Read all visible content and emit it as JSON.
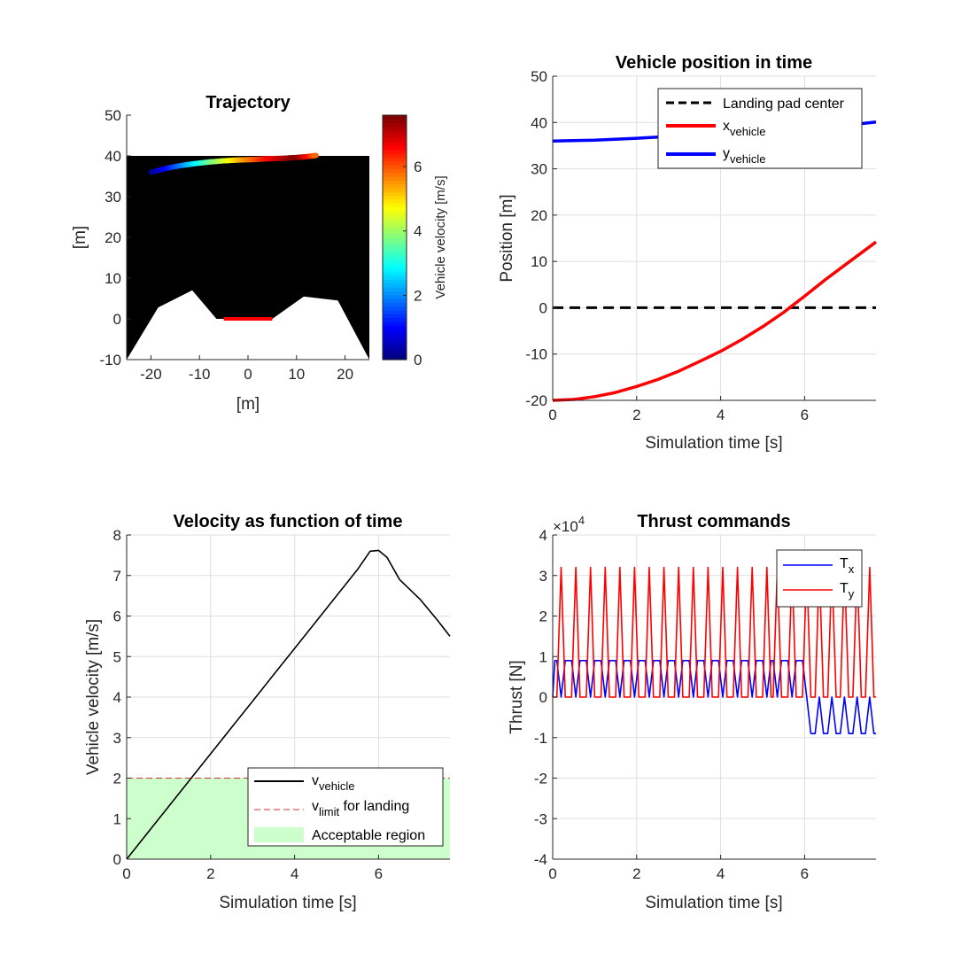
{
  "chart_data": [
    {
      "id": "trajectory",
      "type": "scatter",
      "title": "Trajectory",
      "xlabel": "[m]",
      "ylabel": "[m]",
      "xlim": [
        -25,
        25
      ],
      "ylim": [
        -10,
        50
      ],
      "xticks": [
        -20,
        -10,
        0,
        10,
        20
      ],
      "yticks": [
        -10,
        0,
        10,
        20,
        30,
        40,
        50
      ],
      "grid": false,
      "background_region": {
        "y_top": 40,
        "color": "#000000"
      },
      "terrain": {
        "color": "#ffffff",
        "points": [
          [
            -25,
            -10
          ],
          [
            -18.5,
            2.8
          ],
          [
            -11.5,
            7
          ],
          [
            -6.5,
            0
          ],
          [
            5,
            0
          ],
          [
            11.5,
            5.5
          ],
          [
            18.5,
            4.5
          ],
          [
            25,
            -10
          ]
        ]
      },
      "landing_pad": {
        "x": [
          -5,
          5
        ],
        "y": 0,
        "color": "#ff0000"
      },
      "path": {
        "x": [
          -20,
          -17,
          -14,
          -11,
          -8,
          -5,
          -2,
          1,
          4,
          7,
          10,
          12,
          14
        ],
        "y": [
          36.0,
          36.9,
          37.6,
          38.1,
          38.5,
          38.8,
          39.0,
          39.1,
          39.3,
          39.4,
          39.6,
          39.8,
          40.1
        ],
        "speed": [
          0,
          0.9,
          1.8,
          2.7,
          3.6,
          4.4,
          5.2,
          5.9,
          6.6,
          7.2,
          7.6,
          6.8,
          5.8
        ]
      },
      "colorbar": {
        "label": "Vehicle velocity [m/s]",
        "clim": [
          0,
          7.6
        ],
        "ticks": [
          0,
          2,
          4,
          6
        ],
        "colormap": "jet"
      }
    },
    {
      "id": "position",
      "type": "line",
      "title": "Vehicle position in time",
      "xlabel": "Simulation time [s]",
      "ylabel": "Position [m]",
      "xlim": [
        0,
        7.7
      ],
      "ylim": [
        -20,
        50
      ],
      "xticks": [
        0,
        2,
        4,
        6
      ],
      "yticks": [
        -20,
        -10,
        0,
        10,
        20,
        30,
        40,
        50
      ],
      "grid": true,
      "legend": "top-right",
      "series": [
        {
          "name": "Landing pad center",
          "color": "#000000",
          "dash": "dashed",
          "x": [
            0,
            7.7
          ],
          "y": [
            0,
            0
          ]
        },
        {
          "name": "x",
          "subscript": "vehicle",
          "color": "#ff0000",
          "x": [
            0,
            0.5,
            1,
            1.5,
            2,
            2.5,
            3,
            3.5,
            4,
            4.5,
            5,
            5.5,
            6,
            6.5,
            7,
            7.7
          ],
          "y": [
            -20,
            -19.8,
            -19.2,
            -18.3,
            -17,
            -15.5,
            -13.7,
            -11.6,
            -9.4,
            -6.9,
            -4.1,
            -1.0,
            2.5,
            6.1,
            9.5,
            14.2
          ]
        },
        {
          "name": "y",
          "subscript": "vehicle",
          "color": "#0000ff",
          "x": [
            0,
            1,
            2,
            3,
            4,
            5,
            6,
            7,
            7.7
          ],
          "y": [
            36,
            36.2,
            36.6,
            37.1,
            37.6,
            38.1,
            38.7,
            39.4,
            40.1
          ]
        }
      ]
    },
    {
      "id": "velocity",
      "type": "line",
      "title": "Velocity as function of time",
      "xlabel": "Simulation time [s]",
      "ylabel": "Vehicle velocity [m/s]",
      "xlim": [
        0,
        7.7
      ],
      "ylim": [
        0,
        8
      ],
      "xticks": [
        0,
        2,
        4,
        6
      ],
      "yticks": [
        0,
        1,
        2,
        3,
        4,
        5,
        6,
        7,
        8
      ],
      "grid": true,
      "legend": "bottom-right",
      "series": [
        {
          "name": "v",
          "subscript": "vehicle",
          "color": "#000000",
          "x": [
            0,
            0.5,
            1,
            1.5,
            2,
            2.5,
            3,
            3.5,
            4,
            4.5,
            5,
            5.5,
            5.8,
            6.0,
            6.2,
            6.5,
            7.0,
            7.4,
            7.7
          ],
          "y": [
            0,
            0.65,
            1.3,
            1.95,
            2.6,
            3.25,
            3.9,
            4.55,
            5.2,
            5.85,
            6.5,
            7.15,
            7.6,
            7.62,
            7.45,
            6.9,
            6.4,
            5.9,
            5.5
          ]
        },
        {
          "name": "v",
          "subscript": "limit",
          "suffix": " for landing",
          "color": "#cc3333",
          "dash": "dashed",
          "x": [
            0,
            7.7
          ],
          "y": [
            2,
            2
          ]
        }
      ],
      "region": {
        "name": "Acceptable region",
        "y": [
          0,
          2
        ],
        "color": "#ccffcc"
      }
    },
    {
      "id": "thrust",
      "type": "line",
      "title": "Thrust commands",
      "xlabel": "Simulation time [s]",
      "ylabel": "Thrust [N]",
      "xlim": [
        0,
        7.7
      ],
      "ylim": [
        -4,
        4
      ],
      "xticks": [
        0,
        2,
        4,
        6
      ],
      "yticks": [
        -4,
        -3,
        -2,
        -1,
        0,
        1,
        2,
        3,
        4
      ],
      "exponent_base": "×10",
      "exponent": "4",
      "grid": true,
      "legend": "top-right",
      "pulse_times": [
        0.2,
        0.55,
        0.9,
        1.25,
        1.6,
        1.95,
        2.3,
        2.65,
        3.0,
        3.35,
        3.7,
        4.05,
        4.4,
        4.75,
        5.1,
        5.35,
        5.7,
        6.05,
        6.35,
        6.65,
        6.95,
        7.25,
        7.55
      ],
      "series": [
        {
          "name": "T",
          "subscript": "x",
          "color": "#0000ff",
          "level_before": 0.9,
          "level_after": -0.9,
          "switch_time": 6.05
        },
        {
          "name": "T",
          "subscript": "y",
          "color": "#ff0000",
          "peak": 3.2,
          "base": 0
        }
      ]
    }
  ]
}
